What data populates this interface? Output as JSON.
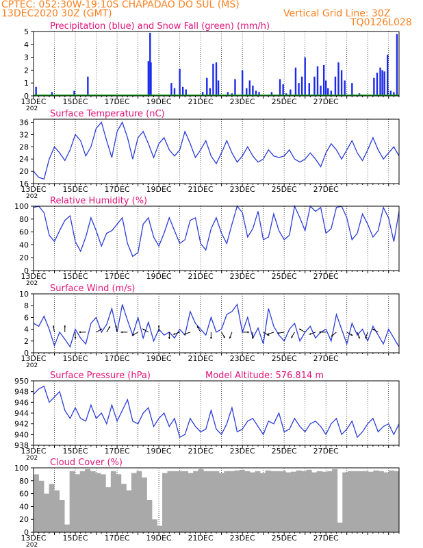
{
  "header": {
    "line1": "CPTEC:   052:30W-19:10S   CHAPADAO DO SUL (MS)",
    "line2": "13DEC2020 30Z (GMT)",
    "grid_note": "Vertical Grid Line: 30Z",
    "code": "TQ0126L028"
  },
  "colors": {
    "header": "#ff7f1e",
    "title": "#e0147a",
    "line": "#2a3bd8",
    "precip": "#1c2be8",
    "snow": "#19a519",
    "cloud": "#a9a9a9"
  },
  "x_axis": {
    "date_labels": [
      "13DEC",
      "15DEC",
      "17DEC",
      "19DEC",
      "21DEC",
      "23DEC",
      "25DEC",
      "27DEC"
    ],
    "year_fragment": "202"
  },
  "chart_data": [
    {
      "name": "precipitation",
      "type": "bar",
      "title": "Precipitation (blue) and Snow Fall (green) (mm/h)",
      "ylim": [
        0,
        5
      ],
      "yticks": [
        "0",
        "1",
        "2",
        "3",
        "4",
        "5"
      ],
      "xunit": "days after 13DEC 00Z",
      "series": [
        {
          "name": "Precipitation",
          "x": [
            0.12,
            0.88,
            1.95,
            2.6,
            5.5,
            5.58,
            5.62,
            6.6,
            6.75,
            7.0,
            7.15,
            7.3,
            8.1,
            8.3,
            8.45,
            8.6,
            8.75,
            8.85,
            9.3,
            9.5,
            9.65,
            10.0,
            10.2,
            10.35,
            10.5,
            10.65,
            10.8,
            11.4,
            11.8,
            11.95,
            12.1,
            12.3,
            12.55,
            12.7,
            12.85,
            13.0,
            13.2,
            13.45,
            13.6,
            13.75,
            13.9,
            14.0,
            14.1,
            14.25,
            14.45,
            14.6,
            14.75,
            14.9,
            15.25,
            15.6,
            16.3,
            16.45,
            16.6,
            16.7,
            16.8,
            16.95,
            17.1,
            17.25,
            17.4
          ],
          "values": [
            0.7,
            0.3,
            0.4,
            1.5,
            2.7,
            4.9,
            2.6,
            1.0,
            0.6,
            2.1,
            0.7,
            0.5,
            0.3,
            1.4,
            0.6,
            2.5,
            2.6,
            1.2,
            0.3,
            0.2,
            1.3,
            2.0,
            0.6,
            1.2,
            0.8,
            0.4,
            0.3,
            0.3,
            1.3,
            0.9,
            0.2,
            0.5,
            2.2,
            1.0,
            1.5,
            3.0,
            1.0,
            1.5,
            2.3,
            0.8,
            2.4,
            1.2,
            0.6,
            0.4,
            1.5,
            2.6,
            2.0,
            1.2,
            1.0,
            0.2,
            1.4,
            1.8,
            2.2,
            2.0,
            1.9,
            3.2,
            0.4,
            0.3,
            4.8
          ]
        },
        {
          "name": "Snow Fall",
          "x": [
            0,
            17.5
          ],
          "values": [
            0,
            0
          ]
        }
      ]
    },
    {
      "name": "temperature",
      "type": "line",
      "title": "Surface Temperature (nC)",
      "ylim": [
        16,
        37
      ],
      "yticks": [
        "16",
        "20",
        "24",
        "28",
        "32",
        "36"
      ],
      "series": [
        {
          "name": "Surface Temperature",
          "x": [
            0,
            0.25,
            0.5,
            0.75,
            1,
            1.25,
            1.5,
            1.75,
            2,
            2.25,
            2.5,
            2.75,
            3,
            3.25,
            3.5,
            3.75,
            4,
            4.25,
            4.5,
            4.75,
            5,
            5.25,
            5.5,
            5.75,
            6,
            6.25,
            6.5,
            6.75,
            7,
            7.25,
            7.5,
            7.75,
            8,
            8.25,
            8.5,
            8.75,
            9,
            9.25,
            9.5,
            9.75,
            10,
            10.25,
            10.5,
            10.75,
            11,
            11.25,
            11.5,
            11.75,
            12,
            12.25,
            12.5,
            12.75,
            13,
            13.25,
            13.5,
            13.75,
            14,
            14.25,
            14.5,
            14.75,
            15,
            15.25,
            15.5,
            15.75,
            16,
            16.25,
            16.5,
            16.75,
            17,
            17.25,
            17.5
          ],
          "values": [
            20,
            18,
            17.5,
            24,
            28,
            26,
            23.5,
            27,
            32,
            30,
            25,
            28,
            34,
            36,
            30,
            24.5,
            33,
            36,
            31,
            24,
            31,
            33,
            29,
            24.5,
            29,
            31,
            27,
            25,
            27,
            33,
            29,
            24.5,
            27,
            30,
            25,
            22.5,
            26,
            30,
            26,
            23,
            25,
            28,
            25,
            23,
            24,
            27,
            25,
            24.5,
            25,
            27,
            24,
            23,
            24,
            26,
            24,
            21.5,
            26,
            29,
            27,
            24,
            27,
            30,
            26,
            23.5,
            27,
            31,
            27,
            24,
            26,
            28,
            25
          ]
        }
      ]
    },
    {
      "name": "humidity",
      "type": "line",
      "title": "Relative Humidity (%)",
      "ylim": [
        0,
        100
      ],
      "yticks": [
        "0",
        "20",
        "40",
        "60",
        "80",
        "100"
      ],
      "series": [
        {
          "name": "Relative Humidity",
          "x": [
            0,
            0.25,
            0.5,
            0.75,
            1,
            1.25,
            1.5,
            1.75,
            2,
            2.25,
            2.5,
            2.75,
            3,
            3.25,
            3.5,
            3.75,
            4,
            4.25,
            4.5,
            4.75,
            5,
            5.25,
            5.5,
            5.75,
            6,
            6.25,
            6.5,
            6.75,
            7,
            7.25,
            7.5,
            7.75,
            8,
            8.25,
            8.5,
            8.75,
            9,
            9.25,
            9.5,
            9.75,
            10,
            10.25,
            10.5,
            10.75,
            11,
            11.25,
            11.5,
            11.75,
            12,
            12.25,
            12.5,
            12.75,
            13,
            13.25,
            13.5,
            13.75,
            14,
            14.25,
            14.5,
            14.75,
            15,
            15.25,
            15.5,
            15.75,
            16,
            16.25,
            16.5,
            16.75,
            17,
            17.25,
            17.5
          ],
          "values": [
            98,
            100,
            90,
            55,
            45,
            62,
            78,
            85,
            45,
            30,
            52,
            82,
            62,
            38,
            58,
            62,
            72,
            82,
            42,
            22,
            28,
            72,
            82,
            52,
            38,
            58,
            82,
            62,
            42,
            48,
            78,
            82,
            42,
            32,
            65,
            82,
            58,
            42,
            72,
            100,
            90,
            52,
            65,
            92,
            48,
            52,
            88,
            62,
            48,
            55,
            100,
            82,
            62,
            100,
            92,
            98,
            58,
            65,
            98,
            100,
            82,
            48,
            58,
            88,
            72,
            52,
            62,
            98,
            82,
            45,
            92
          ]
        }
      ]
    },
    {
      "name": "wind",
      "type": "line",
      "title": "Surface Wind (m/s)",
      "ylim": [
        0,
        10
      ],
      "yticks": [
        "0",
        "2",
        "4",
        "6",
        "8",
        "10"
      ],
      "series": [
        {
          "name": "Surface Wind",
          "x": [
            0,
            0.25,
            0.5,
            0.75,
            1,
            1.25,
            1.5,
            1.75,
            2,
            2.25,
            2.5,
            2.75,
            3,
            3.25,
            3.5,
            3.75,
            4,
            4.25,
            4.5,
            4.75,
            5,
            5.25,
            5.5,
            5.75,
            6,
            6.25,
            6.5,
            6.75,
            7,
            7.25,
            7.5,
            7.75,
            8,
            8.25,
            8.5,
            8.75,
            9,
            9.25,
            9.5,
            9.75,
            10,
            10.25,
            10.5,
            10.75,
            11,
            11.25,
            11.5,
            11.75,
            12,
            12.25,
            12.5,
            12.75,
            13,
            13.25,
            13.5,
            13.75,
            14,
            14.25,
            14.5,
            14.75,
            15,
            15.25,
            15.5,
            15.75,
            16,
            16.25,
            16.5,
            16.75,
            17,
            17.25,
            17.5
          ],
          "values": [
            5,
            4.5,
            6.2,
            4,
            1.2,
            3.5,
            2.3,
            1,
            4,
            2.5,
            1.5,
            5,
            6,
            3.5,
            4.8,
            7.5,
            3.5,
            8.2,
            5.5,
            3,
            6,
            2.5,
            5.2,
            2,
            4,
            3,
            3.5,
            2.5,
            4,
            3,
            7,
            5,
            4,
            3,
            6,
            3.5,
            4,
            6.5,
            7,
            8.2,
            3.5,
            6,
            2.5,
            4.2,
            1.5,
            7.5,
            4.5,
            3,
            2,
            4,
            5,
            2,
            3.5,
            4.5,
            2.5,
            3.5,
            4,
            2,
            6.5,
            4,
            1.5,
            5,
            3,
            4,
            2,
            4.5,
            3,
            1.5,
            4,
            2.5,
            1
          ]
        }
      ],
      "wind_direction_deg": [
        350,
        0,
        180,
        270,
        60,
        30,
        350,
        270,
        240,
        300,
        0,
        180,
        250,
        250,
        330,
        180,
        150,
        200,
        90,
        180,
        120,
        250,
        260,
        210,
        300,
        250,
        270,
        230,
        120,
        160,
        200,
        300
      ]
    },
    {
      "name": "pressure",
      "type": "line",
      "title": "Surface Pressure (hPa)",
      "annotation": "Model Altitude: 576.814  m",
      "ylim": [
        938,
        950
      ],
      "yticks": [
        "938",
        "940",
        "942",
        "944",
        "946",
        "948",
        "950"
      ],
      "series": [
        {
          "name": "Surface Pressure",
          "x": [
            0,
            0.25,
            0.5,
            0.75,
            1,
            1.25,
            1.5,
            1.75,
            2,
            2.25,
            2.5,
            2.75,
            3,
            3.25,
            3.5,
            3.75,
            4,
            4.25,
            4.5,
            4.75,
            5,
            5.25,
            5.5,
            5.75,
            6,
            6.25,
            6.5,
            6.75,
            7,
            7.25,
            7.5,
            7.75,
            8,
            8.25,
            8.5,
            8.75,
            9,
            9.25,
            9.5,
            9.75,
            10,
            10.25,
            10.5,
            10.75,
            11,
            11.25,
            11.5,
            11.75,
            12,
            12.25,
            12.5,
            12.75,
            13,
            13.25,
            13.5,
            13.75,
            14,
            14.25,
            14.5,
            14.75,
            15,
            15.25,
            15.5,
            15.75,
            16,
            16.25,
            16.5,
            16.75,
            17,
            17.25,
            17.5
          ],
          "values": [
            947.5,
            948.5,
            949,
            946,
            947,
            948,
            944.5,
            943,
            945,
            943,
            942.5,
            945.5,
            943,
            944,
            942,
            945.5,
            942.5,
            944.5,
            946.5,
            942.5,
            942,
            944,
            945,
            941.5,
            943,
            944,
            941.5,
            943,
            939.5,
            940,
            943,
            941.5,
            940.5,
            941,
            944.5,
            941,
            940,
            942,
            945,
            940.5,
            941,
            942.5,
            943,
            941.5,
            940,
            942.5,
            942,
            944,
            940.5,
            941,
            943,
            941.5,
            940.5,
            942,
            942.5,
            941.5,
            940,
            942,
            943,
            940,
            941,
            942.5,
            939.5,
            940.5,
            942,
            943,
            940.5,
            941.5,
            942,
            940,
            942
          ]
        }
      ]
    },
    {
      "name": "cloud_cover",
      "type": "bar",
      "title": "Cloud Cover (%)",
      "ylim": [
        0,
        100
      ],
      "yticks": [
        "0",
        "20",
        "40",
        "60",
        "80",
        "100"
      ],
      "series": [
        {
          "name": "Cloud Cover",
          "x": [
            0,
            0.25,
            0.5,
            0.75,
            1,
            1.25,
            1.5,
            1.75,
            2,
            2.25,
            2.5,
            2.75,
            3,
            3.25,
            3.5,
            3.75,
            4,
            4.25,
            4.5,
            4.75,
            5,
            5.25,
            5.5,
            5.75,
            6,
            6.25,
            6.5,
            6.75,
            7,
            7.25,
            7.5,
            7.75,
            8,
            8.25,
            8.5,
            8.75,
            9,
            9.25,
            9.5,
            9.75,
            10,
            10.25,
            10.5,
            10.75,
            11,
            11.25,
            11.5,
            11.75,
            12,
            12.25,
            12.5,
            12.75,
            13,
            13.25,
            13.5,
            13.75,
            14,
            14.25,
            14.5,
            14.75,
            15,
            15.25,
            15.5,
            15.75,
            16,
            16.25,
            16.5,
            16.75,
            17,
            17.25,
            17.5
          ],
          "values": [
            90,
            80,
            60,
            75,
            65,
            50,
            12,
            95,
            90,
            95,
            98,
            95,
            92,
            90,
            70,
            95,
            90,
            75,
            65,
            92,
            95,
            85,
            50,
            20,
            10,
            92,
            95,
            95,
            95,
            95,
            92,
            95,
            98,
            95,
            95,
            95,
            92,
            95,
            95,
            96,
            97,
            95,
            93,
            95,
            92,
            96,
            95,
            95,
            95,
            93,
            94,
            96,
            95,
            97,
            93,
            95,
            94,
            95,
            98,
            15,
            93,
            95,
            95,
            95,
            95,
            94,
            96,
            95,
            93,
            96,
            95
          ]
        }
      ]
    }
  ]
}
